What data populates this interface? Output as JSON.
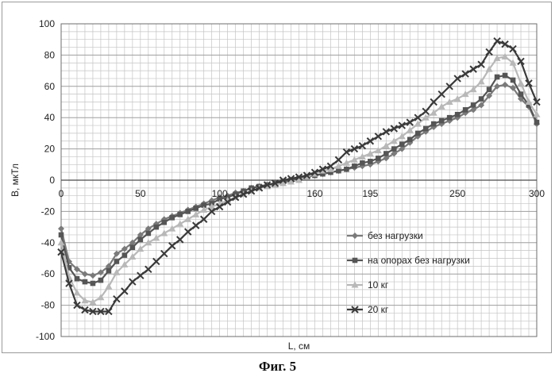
{
  "caption": "Фиг. 5",
  "chart_data": {
    "type": "line",
    "xlabel": "L, см",
    "ylabel": "B, мкТл",
    "xlim": [
      0,
      300
    ],
    "ylim": [
      -100,
      100
    ],
    "xticks": [
      "0",
      "50",
      "100",
      "160",
      "195",
      "250",
      "300"
    ],
    "xtick_values": [
      0,
      50,
      100,
      160,
      195,
      250,
      300
    ],
    "yticks": [
      100,
      80,
      60,
      40,
      20,
      0,
      -20,
      -40,
      -60,
      -80,
      -100
    ],
    "grid": true,
    "legend_position": "bottom-right",
    "series": [
      {
        "name": "без нагрузки",
        "color": "#7a7a7a",
        "marker": "diamond",
        "x": [
          0,
          5,
          10,
          15,
          20,
          25,
          30,
          35,
          40,
          45,
          50,
          55,
          60,
          65,
          70,
          75,
          80,
          85,
          90,
          95,
          100,
          105,
          110,
          115,
          120,
          125,
          130,
          135,
          140,
          145,
          150,
          155,
          160,
          165,
          170,
          175,
          180,
          185,
          190,
          195,
          200,
          205,
          210,
          215,
          220,
          225,
          230,
          235,
          240,
          245,
          250,
          255,
          260,
          265,
          270,
          275,
          280,
          285,
          290,
          295,
          300
        ],
        "y": [
          -31,
          -52,
          -57,
          -60,
          -61,
          -59,
          -55,
          -47,
          -44,
          -40,
          -35,
          -31,
          -28,
          -25,
          -23,
          -21,
          -19,
          -17,
          -15,
          -13,
          -11,
          -10,
          -8,
          -7,
          -5,
          -4,
          -3,
          -2,
          -1,
          0,
          1,
          2,
          3,
          4,
          5,
          6,
          7,
          8,
          9,
          10,
          12,
          14,
          17,
          20,
          24,
          28,
          31,
          34,
          36,
          38,
          40,
          43,
          45,
          48,
          54,
          60,
          61,
          59,
          52,
          47,
          36
        ]
      },
      {
        "name": "на опорах без нагрузки",
        "color": "#555555",
        "marker": "square",
        "x": [
          0,
          5,
          10,
          15,
          20,
          25,
          30,
          35,
          40,
          45,
          50,
          55,
          60,
          65,
          70,
          75,
          80,
          85,
          90,
          95,
          100,
          105,
          110,
          115,
          120,
          125,
          130,
          135,
          140,
          145,
          150,
          155,
          160,
          165,
          170,
          175,
          180,
          185,
          190,
          195,
          200,
          205,
          210,
          215,
          220,
          225,
          230,
          235,
          240,
          245,
          250,
          255,
          260,
          265,
          270,
          275,
          280,
          285,
          290,
          295,
          300
        ],
        "y": [
          -35,
          -56,
          -63,
          -65,
          -66,
          -64,
          -58,
          -52,
          -48,
          -43,
          -38,
          -34,
          -30,
          -27,
          -24,
          -22,
          -20,
          -18,
          -16,
          -15,
          -12,
          -11,
          -9,
          -7,
          -5,
          -4,
          -3,
          -2,
          -1,
          0,
          1,
          2,
          3,
          4,
          5,
          6,
          7,
          9,
          11,
          12,
          14,
          17,
          20,
          23,
          26,
          30,
          33,
          36,
          38,
          40,
          42,
          45,
          48,
          52,
          58,
          66,
          67,
          64,
          55,
          48,
          37
        ]
      },
      {
        "name": "10 кг",
        "color": "#b8b8b8",
        "marker": "triangle",
        "x": [
          0,
          5,
          10,
          15,
          20,
          25,
          30,
          35,
          40,
          45,
          50,
          55,
          60,
          65,
          70,
          75,
          80,
          85,
          90,
          95,
          100,
          105,
          110,
          115,
          120,
          125,
          130,
          135,
          140,
          145,
          150,
          155,
          160,
          165,
          170,
          175,
          180,
          185,
          190,
          195,
          200,
          205,
          210,
          215,
          220,
          225,
          230,
          235,
          240,
          245,
          250,
          255,
          260,
          265,
          270,
          275,
          280,
          285,
          290,
          295,
          300
        ],
        "y": [
          -40,
          -62,
          -72,
          -77,
          -78,
          -75,
          -68,
          -59,
          -54,
          -49,
          -44,
          -40,
          -37,
          -34,
          -31,
          -28,
          -25,
          -22,
          -19,
          -17,
          -15,
          -13,
          -11,
          -9,
          -7,
          -5,
          -4,
          -3,
          -2,
          -1,
          0,
          2,
          4,
          6,
          7,
          9,
          11,
          13,
          15,
          17,
          19,
          22,
          25,
          28,
          32,
          36,
          40,
          43,
          47,
          50,
          52,
          55,
          58,
          63,
          71,
          78,
          79,
          75,
          62,
          50,
          42
        ]
      },
      {
        "name": "20 кг",
        "color": "#3a3a3a",
        "marker": "x",
        "x": [
          0,
          5,
          10,
          15,
          20,
          25,
          30,
          35,
          40,
          45,
          50,
          55,
          60,
          65,
          70,
          75,
          80,
          85,
          90,
          95,
          100,
          105,
          110,
          115,
          120,
          125,
          130,
          135,
          140,
          145,
          150,
          155,
          160,
          165,
          170,
          175,
          180,
          185,
          190,
          195,
          200,
          205,
          210,
          215,
          220,
          225,
          230,
          235,
          240,
          245,
          250,
          255,
          260,
          265,
          270,
          275,
          280,
          285,
          290,
          295,
          300
        ],
        "y": [
          -46,
          -66,
          -80,
          -83,
          -84,
          -84,
          -84,
          -76,
          -71,
          -65,
          -61,
          -57,
          -52,
          -47,
          -42,
          -38,
          -33,
          -29,
          -25,
          -20,
          -17,
          -14,
          -11,
          -9,
          -7,
          -5,
          -3,
          -2,
          0,
          1,
          2,
          3,
          5,
          7,
          9,
          13,
          18,
          20,
          22,
          25,
          28,
          31,
          33,
          35,
          37,
          40,
          44,
          50,
          55,
          60,
          65,
          68,
          71,
          74,
          82,
          89,
          87,
          84,
          76,
          62,
          50
        ]
      }
    ]
  }
}
